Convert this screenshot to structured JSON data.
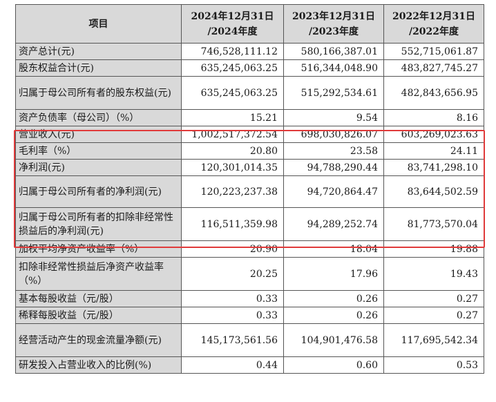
{
  "table": {
    "headers": [
      "项目",
      "2024年12月31日\n/2024年度",
      "2023年12月31日\n/2023年度",
      "2022年12月31日\n/2022年度"
    ],
    "rows": [
      {
        "label": "资产总计(元)",
        "v": [
          "746,528,111.12",
          "580,166,387.01",
          "552,715,061.87"
        ]
      },
      {
        "label": "股东权益合计(元)",
        "v": [
          "635,245,063.25",
          "516,344,048.90",
          "483,827,745.27"
        ]
      },
      {
        "label": "归属于母公司所有者的股东权益(元)",
        "v": [
          "635,245,063.25",
          "515,292,534.61",
          "482,843,656.95"
        ]
      },
      {
        "label": "资产负债率（母公司）（%）",
        "v": [
          "15.21",
          "9.54",
          "8.16"
        ]
      },
      {
        "label": "营业收入(元)",
        "v": [
          "1,002,517,372.54",
          "698,030,826.07",
          "603,269,023.63"
        ]
      },
      {
        "label": "毛利率（%）",
        "v": [
          "20.80",
          "23.58",
          "24.11"
        ]
      },
      {
        "label": "净利润(元)",
        "v": [
          "120,301,014.35",
          "94,788,290.44",
          "83,741,298.10"
        ]
      },
      {
        "label": "归属于母公司所有者的净利润(元)",
        "v": [
          "120,223,237.38",
          "94,720,864.47",
          "83,644,502.59"
        ]
      },
      {
        "label": "归属于母公司所有者的扣除非经常性损益后的净利润(元)",
        "v": [
          "116,511,359.98",
          "94,289,252.74",
          "81,773,570.04"
        ]
      },
      {
        "label": "加权平均净资产收益率（%）",
        "v": [
          "20.90",
          "18.04",
          "19.88"
        ]
      },
      {
        "label": "扣除非经常性损益后净资产收益率（%）",
        "v": [
          "20.25",
          "17.96",
          "19.43"
        ]
      },
      {
        "label": "基本每股收益（元/股）",
        "v": [
          "0.33",
          "0.26",
          "0.27"
        ]
      },
      {
        "label": "稀释每股收益（元/股）",
        "v": [
          "0.33",
          "0.26",
          "0.27"
        ]
      },
      {
        "label": "经营活动产生的现金流量净额(元)",
        "v": [
          "145,173,561.56",
          "104,901,476.58",
          "117,695,542.34"
        ]
      },
      {
        "label": "研发投入占营业收入的比例(%)",
        "v": [
          "0.44",
          "0.60",
          "0.53"
        ]
      }
    ]
  },
  "highlight": {
    "color": "#e03a3a"
  }
}
